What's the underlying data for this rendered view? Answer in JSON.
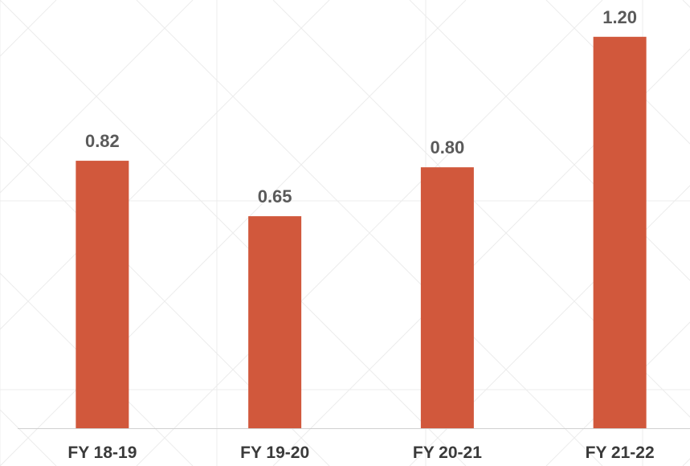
{
  "chart_data": {
    "type": "bar",
    "categories": [
      "FY 18-19",
      "FY 19-20",
      "FY 20-21",
      "FY 21-22"
    ],
    "values": [
      0.82,
      0.65,
      0.8,
      1.2
    ],
    "data_labels": [
      "0.82",
      "0.65",
      "0.80",
      "1.20"
    ],
    "title": "",
    "xlabel": "",
    "ylabel": "",
    "ylim": [
      0,
      1.25
    ],
    "grid": false,
    "legend": "none",
    "colors": {
      "bar": "#d1583c",
      "data_label": "#5a5a5a",
      "category_label": "#3a3a3a",
      "axis": "#d0d0d0",
      "background_pattern": "#ececec"
    }
  }
}
